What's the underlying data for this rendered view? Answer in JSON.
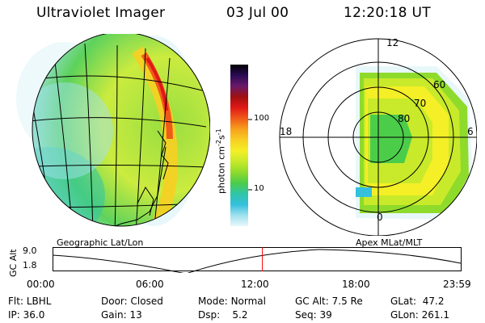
{
  "header": {
    "title": "Ultraviolet Imager",
    "date": "03 Jul 00",
    "time": "12:20:18 UT"
  },
  "geo_panel": {
    "label": "Geographic Lat/Lon"
  },
  "colorbar": {
    "unit": "photon cm",
    "unit_exp1": "-2",
    "unit_s": "s",
    "unit_exp2": "-1",
    "ticks": [
      "100",
      "10"
    ],
    "colors": [
      "#000000",
      "#2a0a55",
      "#6a1a6a",
      "#a01010",
      "#e01818",
      "#f05a18",
      "#f7a11c",
      "#f7cf22",
      "#f4ef26",
      "#c8ea2a",
      "#8fdb2c",
      "#4ccd4a",
      "#2fc5a8",
      "#35c0dd",
      "#9fe1ee",
      "#e8f7fa"
    ]
  },
  "polar_panel": {
    "label": "Apex MLat/MLT",
    "mlt_labels": {
      "top": "12",
      "left": "18",
      "right": "6",
      "bottom": "0"
    },
    "lat_labels": [
      "60",
      "70",
      "80"
    ]
  },
  "altitude_plot": {
    "ylabel": "GC Alt",
    "yticks": [
      "9.0",
      "1.8"
    ],
    "xticks": [
      "00:00",
      "06:00",
      "12:00",
      "18:00",
      "23:59"
    ],
    "current_time_fraction": 0.514,
    "marker_color": "#ff0000"
  },
  "status": {
    "flt_label": "Flt:",
    "flt_value": "LBHL",
    "ip_label": "IP:",
    "ip_value": "36.0",
    "door_label": "Door:",
    "door_value": "Closed",
    "gain_label": "Gain:",
    "gain_value": "13",
    "mode_label": "Mode:",
    "mode_value": "Normal",
    "dsp_label": "Dsp:",
    "dsp_value": "5.2",
    "gcalt_label": "GC Alt:",
    "gcalt_value": "7.5 Re",
    "seq_label": "Seq:",
    "seq_value": "39",
    "glat_label": "GLat:",
    "glat_value": "47.2",
    "glon_label": "GLon:",
    "glon_value": "261.1"
  }
}
